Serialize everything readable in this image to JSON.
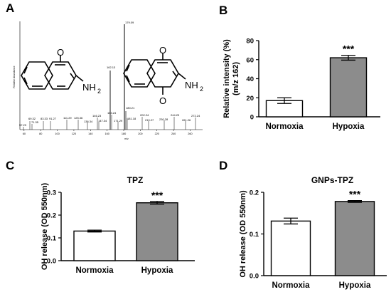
{
  "panels": {
    "a": {
      "letter": "A"
    },
    "b": {
      "letter": "B"
    },
    "c": {
      "letter": "C"
    },
    "d": {
      "letter": "D"
    }
  },
  "mass_spectrum": {
    "ylabel": "Relative Abundance",
    "xlabel": "m/z",
    "x_ticks": [
      60,
      80,
      100,
      120,
      140,
      160,
      180,
      200,
      220,
      240,
      260
    ],
    "peak_labels": [
      "179.09",
      "162.13",
      "180.21",
      "57.29",
      "69.32",
      "71.35",
      "83.33",
      "91.27",
      "111.29",
      "125.36",
      "136.34",
      "146.23",
      "147.34",
      "163.24",
      "171.29",
      "181.18",
      "202.24",
      "210.27",
      "230.28",
      "244.29",
      "261.26",
      "272.24"
    ],
    "molecule_left": {
      "n_oxide_o": "O",
      "amine_label": "NH",
      "amine_sub": "2"
    },
    "molecule_right": {
      "n_oxide_o": "O",
      "lower_o": "O",
      "amine_label": "NH",
      "amine_sub": "2"
    }
  },
  "chart_data": [
    {
      "type": "bar",
      "panel": "B",
      "title": "",
      "ylabel": "Relative intensity (%)\n(m/z 162)",
      "ylabel_lines": [
        "Relative intensity (%)",
        "(m/z 162)"
      ],
      "categories": [
        "Normoxia",
        "Hypoxia"
      ],
      "values": [
        17,
        62
      ],
      "errors": [
        3,
        2.5
      ],
      "colors": [
        "#ffffff",
        "#8c8c8c"
      ],
      "ylim": [
        0,
        80
      ],
      "yticks": [
        0,
        20,
        40,
        60,
        80
      ],
      "ytick_labels": [
        "0",
        "20",
        "40",
        "60",
        "80"
      ],
      "annotations": [
        "",
        "***"
      ]
    },
    {
      "type": "bar",
      "panel": "C",
      "title": "TPZ",
      "ylabel": "OH release (OD 550nm)",
      "categories": [
        "Normoxia",
        "Hypoxia"
      ],
      "values": [
        0.13,
        0.254
      ],
      "errors": [
        0.004,
        0.006
      ],
      "colors": [
        "#ffffff",
        "#8c8c8c"
      ],
      "ylim": [
        0,
        0.3
      ],
      "yticks": [
        0,
        0.1,
        0.2,
        0.3
      ],
      "ytick_labels": [
        "0.0",
        "0.1",
        "0.2",
        "0.3"
      ],
      "annotations": [
        "",
        "***"
      ]
    },
    {
      "type": "bar",
      "panel": "D",
      "title": "GNPs-TPZ",
      "ylabel": "OH release (OD 550nm)",
      "categories": [
        "Normoxia",
        "Hypoxia"
      ],
      "values": [
        0.131,
        0.178
      ],
      "errors": [
        0.007,
        0.002
      ],
      "colors": [
        "#ffffff",
        "#8c8c8c"
      ],
      "ylim": [
        0,
        0.2
      ],
      "yticks": [
        0,
        0.1,
        0.2
      ],
      "ytick_labels": [
        "0.0",
        "0.1",
        "0.2"
      ],
      "annotations": [
        "",
        "***"
      ]
    }
  ]
}
